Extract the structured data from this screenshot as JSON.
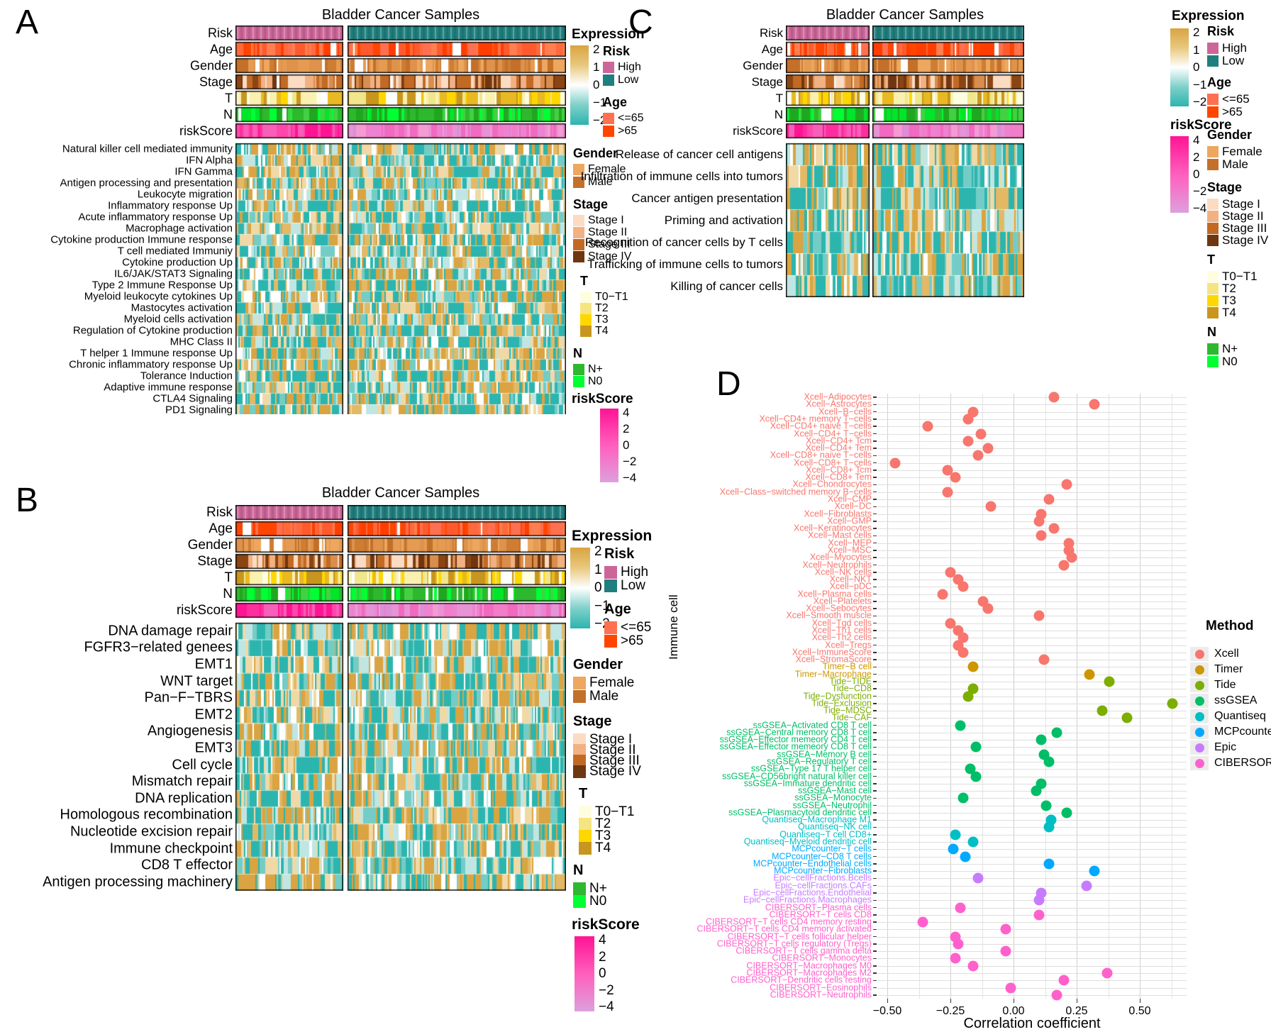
{
  "expression_legend": {
    "title": "Expression",
    "ticks": [
      "2",
      "1",
      "0",
      "−1",
      "−2"
    ],
    "gradient": [
      "#D9A441",
      "#E8C87E",
      "#FFFFFF",
      "#7FD0CA",
      "#2CB5AE"
    ]
  },
  "riskscore_legend": {
    "title": "riskScore",
    "ticks": [
      "4",
      "2",
      "0",
      "−2",
      "−4"
    ],
    "gradient": [
      "#FF1493",
      "#FF5FBE",
      "#DDA0DD"
    ]
  },
  "categorical_legends": {
    "risk": {
      "title": "Risk",
      "items": [
        {
          "label": "High",
          "color": "#CC6699"
        },
        {
          "label": "Low",
          "color": "#1F7F7E"
        }
      ]
    },
    "age": {
      "title": "Age",
      "items": [
        {
          "label": "<=65",
          "color": "#FF7050"
        },
        {
          "label": ">65",
          "color": "#FF4500"
        }
      ]
    },
    "gender": {
      "title": "Gender",
      "items": [
        {
          "label": "Female",
          "color": "#EDA75F"
        },
        {
          "label": "Male",
          "color": "#C3702A"
        }
      ]
    },
    "stage": {
      "title": "Stage",
      "items": [
        {
          "label": "Stage I",
          "color": "#FBDCC3"
        },
        {
          "label": "Stage II",
          "color": "#F2B183"
        },
        {
          "label": "Stage III",
          "color": "#C26A24"
        },
        {
          "label": "Stage IV",
          "color": "#6E3611"
        }
      ]
    },
    "t": {
      "title": "T",
      "items": [
        {
          "label": "T0−T1",
          "color": "#FFFDE0"
        },
        {
          "label": "T2",
          "color": "#F5E582"
        },
        {
          "label": "T3",
          "color": "#FFD700"
        },
        {
          "label": "T4",
          "color": "#C8961E"
        }
      ]
    },
    "n": {
      "title": "N",
      "items": [
        {
          "label": "N+",
          "color": "#2EB82E"
        },
        {
          "label": "N0",
          "color": "#00FF33"
        }
      ]
    }
  },
  "annotation_palettes": {
    "risk_high": [
      "#C05E8F",
      "#CC6699",
      "#D373A3",
      "#C76296"
    ],
    "risk_low": [
      "#13716F",
      "#1F7F7E",
      "#27908E",
      "#1A7A78"
    ],
    "age": [
      "#FF7050",
      "#FF4500",
      "#FF5A2E",
      "#FF7F50",
      "#FF3D00",
      "#FF6A3C"
    ],
    "gender": [
      "#EDA75F",
      "#C3702A",
      "#DE924B",
      "#CE7D33",
      "#E59B52"
    ],
    "stage": [
      "#FBDCC3",
      "#F2B183",
      "#D98E4E",
      "#C26A24",
      "#8B4513",
      "#6E3611"
    ],
    "t": [
      "#FFFDE0",
      "#FAF0B0",
      "#F0E68C",
      "#FFD700",
      "#E8B923",
      "#C8961E"
    ],
    "n": [
      "#2EB82E",
      "#00E629",
      "#00FF33",
      "#1FA81F",
      "#43D143"
    ],
    "riskscore_high": [
      "#FF1493",
      "#FF2E9F",
      "#FF47AB",
      "#F75FB8"
    ],
    "riskscore_low": [
      "#F06ABF",
      "#EE82D0",
      "#E893D6",
      "#F39BD2",
      "#DB8FD8",
      "#F27DC9"
    ],
    "expression_body": [
      "#2CB5AE",
      "#2CB5AE",
      "#2CB5AE",
      "#74CCC6",
      "#BFE6E3",
      "#FFFFFF",
      "#F0D9A6",
      "#E3B966",
      "#D9A441",
      "#D9A441"
    ]
  },
  "panel_a": {
    "label": "A",
    "title": "Bladder Cancer Samples",
    "annotation_rows": [
      "Risk",
      "Age",
      "Gender",
      "Stage",
      "T",
      "N",
      "riskScore"
    ],
    "rows": [
      "Natural killer cell mediated immunity",
      "IFN Alpha",
      "IFN Gamma",
      "Antigen processing and presentation",
      "Leukocyte migration",
      "Inflammatory response Up",
      "Acute inflammatory response Up",
      "Macrophage activation",
      "Cytokine production Immune response",
      "T cell mediated Immuniy",
      "Cytokine production Up",
      "IL6/JAK/STAT3 Signaling",
      "Type 2 Immune Response Up",
      "Myeloid leukocyte cytokines Up",
      "Mastocytes activation",
      "Myeloid cells activation",
      "Regulation of Cytokine production",
      "MHC Class II",
      "T helper 1 Immune response Up",
      "Chronic inflammatory response Up",
      "Tolerance Induction",
      "Adaptive immune response",
      "CTLA4 Signaling",
      "PD1 Signaling"
    ]
  },
  "panel_b": {
    "label": "B",
    "title": "Bladder Cancer Samples",
    "annotation_rows": [
      "Risk",
      "Age",
      "Gender",
      "Stage",
      "T",
      "N",
      "riskScore"
    ],
    "rows": [
      "DNA damage repair",
      "FGFR3−related genees",
      "EMT1",
      "WNT target",
      "Pan−F−TBRS",
      "EMT2",
      "Angiogenesis",
      "EMT3",
      "Cell cycle",
      "Mismatch repair",
      "DNA replication",
      "Homologous recombination",
      "Nucleotide excision repair",
      "Immune checkpoint",
      "CD8 T effector",
      "Antigen processing machinery"
    ]
  },
  "panel_c": {
    "label": "C",
    "title": "Bladder Cancer Samples",
    "annotation_rows": [
      "Risk",
      "Age",
      "Gender",
      "Stage",
      "T",
      "N",
      "riskScore"
    ],
    "rows": [
      "Release of cancer cell antigens",
      "Infiltration of immune cells into tumors",
      "Cancer antigen presentation",
      "Priming and activation",
      "Recognition of cancer cells by T cells",
      "Trafficking of immune cells to tumors",
      "Killing of cancer cells"
    ]
  },
  "panel_d": {
    "label": "D",
    "x_label": "Correlation coefficient",
    "y_label": "Immune cell",
    "x_ticks": [
      "−0.50",
      "−0.25",
      "0.00",
      "0.25",
      "0.50"
    ],
    "legend": {
      "title": "Method",
      "methods": [
        {
          "name": "Xcell",
          "color": "#F8766D"
        },
        {
          "name": "Timer",
          "color": "#CD9600"
        },
        {
          "name": "Tide",
          "color": "#7CAE00"
        },
        {
          "name": "ssGSEA",
          "color": "#00BE67"
        },
        {
          "name": "Quantiseq",
          "color": "#00BFC4"
        },
        {
          "name": "MCPcounter",
          "color": "#00A9FF"
        },
        {
          "name": "Epic",
          "color": "#C77CFF"
        },
        {
          "name": "CIBERSORT",
          "color": "#FF61CC"
        }
      ]
    }
  },
  "chart_data": {
    "type": "scatter",
    "xlabel": "Correlation coefficient",
    "ylabel": "Immune cell",
    "xlim": [
      -0.54,
      0.69
    ],
    "x_tick_values": [
      -0.5,
      -0.25,
      0,
      0.25,
      0.5
    ],
    "grid": "on",
    "legend_position": "right",
    "points": [
      {
        "label": "Xcell−Adipocytes",
        "method": "Xcell",
        "value": 0.16
      },
      {
        "label": "Xcell−Astrocytes",
        "method": "Xcell",
        "value": 0.32
      },
      {
        "label": "Xcell−B−cells",
        "method": "Xcell",
        "value": -0.16
      },
      {
        "label": "Xcell−CD4+ memory T−cells",
        "method": "Xcell",
        "value": -0.18
      },
      {
        "label": "Xcell−CD4+ naive T−cells",
        "method": "Xcell",
        "value": -0.34
      },
      {
        "label": "Xcell−CD4+ T−cells",
        "method": "Xcell",
        "value": -0.13
      },
      {
        "label": "Xcell−CD4+ Tcm",
        "method": "Xcell",
        "value": -0.18
      },
      {
        "label": "Xcell−CD4+ Tem",
        "method": "Xcell",
        "value": -0.1
      },
      {
        "label": "Xcell−CD8+ naive T−cells",
        "method": "Xcell",
        "value": -0.14
      },
      {
        "label": "Xcell−CD8+ T−cells",
        "method": "Xcell",
        "value": -0.47
      },
      {
        "label": "Xcell−CD8+ Tcm",
        "method": "Xcell",
        "value": -0.26
      },
      {
        "label": "Xcell−CD8+ Tem",
        "method": "Xcell",
        "value": -0.23
      },
      {
        "label": "Xcell−Chondrocytes",
        "method": "Xcell",
        "value": 0.21
      },
      {
        "label": "Xcell−Class−switched memory B−cells",
        "method": "Xcell",
        "value": -0.26
      },
      {
        "label": "Xcell−CMP",
        "method": "Xcell",
        "value": 0.14
      },
      {
        "label": "Xcell−DC",
        "method": "Xcell",
        "value": -0.09
      },
      {
        "label": "Xcell−Fibroblasts",
        "method": "Xcell",
        "value": 0.11
      },
      {
        "label": "Xcell−GMP",
        "method": "Xcell",
        "value": 0.1
      },
      {
        "label": "Xcell−Keratinocytes",
        "method": "Xcell",
        "value": 0.16
      },
      {
        "label": "Xcell−Mast cells",
        "method": "Xcell",
        "value": 0.11
      },
      {
        "label": "Xcell−MEP",
        "method": "Xcell",
        "value": 0.22
      },
      {
        "label": "Xcell−MSC",
        "method": "Xcell",
        "value": 0.22
      },
      {
        "label": "Xcell−Myocytes",
        "method": "Xcell",
        "value": 0.23
      },
      {
        "label": "Xcell−Neutrophils",
        "method": "Xcell",
        "value": 0.2
      },
      {
        "label": "Xcell−NK cells",
        "method": "Xcell",
        "value": -0.25
      },
      {
        "label": "Xcell−NKT",
        "method": "Xcell",
        "value": -0.22
      },
      {
        "label": "Xcell−pDC",
        "method": "Xcell",
        "value": -0.2
      },
      {
        "label": "Xcell−Plasma cells",
        "method": "Xcell",
        "value": -0.28
      },
      {
        "label": "Xcell−Platelets",
        "method": "Xcell",
        "value": -0.12
      },
      {
        "label": "Xcell−Sebocytes",
        "method": "Xcell",
        "value": -0.1
      },
      {
        "label": "Xcell−Smooth muscle",
        "method": "Xcell",
        "value": 0.1
      },
      {
        "label": "Xcell−Tgd cells",
        "method": "Xcell",
        "value": -0.25
      },
      {
        "label": "Xcell−Th1 cells",
        "method": "Xcell",
        "value": -0.22
      },
      {
        "label": "Xcell−Th2 cells",
        "method": "Xcell",
        "value": -0.2
      },
      {
        "label": "Xcell−Tregs",
        "method": "Xcell",
        "value": -0.22
      },
      {
        "label": "Xcell−ImmuneScore",
        "method": "Xcell",
        "value": -0.2
      },
      {
        "label": "Xcell−StromaScore",
        "method": "Xcell",
        "value": 0.12
      },
      {
        "label": "Timer−B cell",
        "method": "Timer",
        "value": -0.16
      },
      {
        "label": "Timer−Macrophage",
        "method": "Timer",
        "value": 0.3
      },
      {
        "label": "Tide−TIDE",
        "method": "Tide",
        "value": 0.38
      },
      {
        "label": "Tide−CD8",
        "method": "Tide",
        "value": -0.16
      },
      {
        "label": "Tide−Dysfunction",
        "method": "Tide",
        "value": -0.18
      },
      {
        "label": "Tide−Exclusion",
        "method": "Tide",
        "value": 0.63
      },
      {
        "label": "Tide−MDSC",
        "method": "Tide",
        "value": 0.35
      },
      {
        "label": "Tide−CAF",
        "method": "Tide",
        "value": 0.45
      },
      {
        "label": "ssGSEA−Activated CD8 T cell",
        "method": "ssGSEA",
        "value": -0.21
      },
      {
        "label": "ssGSEA−Central memory CD8 T cell",
        "method": "ssGSEA",
        "value": 0.17
      },
      {
        "label": "ssGSEA−Effector memeory CD4 T cell",
        "method": "ssGSEA",
        "value": 0.11
      },
      {
        "label": "ssGSEA−Effector memeory CD8 T cell",
        "method": "ssGSEA",
        "value": -0.15
      },
      {
        "label": "ssGSEA−Memory B cell",
        "method": "ssGSEA",
        "value": 0.12
      },
      {
        "label": "ssGSEA−Regulatory T cell",
        "method": "ssGSEA",
        "value": 0.14
      },
      {
        "label": "ssGSEA−Type 17 T helper cell",
        "method": "ssGSEA",
        "value": -0.17
      },
      {
        "label": "ssGSEA−CD56bright natural killer cell",
        "method": "ssGSEA",
        "value": -0.15
      },
      {
        "label": "ssGSEA−Immature dendritic cell",
        "method": "ssGSEA",
        "value": 0.11
      },
      {
        "label": "ssGSEA−Mast cell",
        "method": "ssGSEA",
        "value": 0.09
      },
      {
        "label": "ssGSEA−Monocyte",
        "method": "ssGSEA",
        "value": -0.2
      },
      {
        "label": "ssGSEA−Neutrophil",
        "method": "ssGSEA",
        "value": 0.13
      },
      {
        "label": "ssGSEA−Plasmacytoid dendritic cell",
        "method": "ssGSEA",
        "value": 0.21
      },
      {
        "label": "Quantiseq−Macrophage M1",
        "method": "Quantiseq",
        "value": 0.15
      },
      {
        "label": "Quantiseq−NK cell",
        "method": "Quantiseq",
        "value": 0.14
      },
      {
        "label": "Quantiseq−T cell CD8+",
        "method": "Quantiseq",
        "value": -0.23
      },
      {
        "label": "Quantiseq−Myeloid dendritic cell",
        "method": "Quantiseq",
        "value": -0.16
      },
      {
        "label": "MCPcounter−T cells",
        "method": "MCPcounter",
        "value": -0.24
      },
      {
        "label": "MCPcounter−CD8 T cells",
        "method": "MCPcounter",
        "value": -0.19
      },
      {
        "label": "MCPcounter−Endothelial cells",
        "method": "MCPcounter",
        "value": 0.14
      },
      {
        "label": "MCPcounter−Fibroblasts",
        "method": "MCPcounter",
        "value": 0.32
      },
      {
        "label": "Epic−cellFractions.Bcells",
        "method": "Epic",
        "value": -0.14
      },
      {
        "label": "Epic−cellFractions.CAFs",
        "method": "Epic",
        "value": 0.29
      },
      {
        "label": "Epic−cellFractions.Endothelial",
        "method": "Epic",
        "value": 0.11
      },
      {
        "label": "Epic−cellFractions.Macrophages",
        "method": "Epic",
        "value": 0.1
      },
      {
        "label": "CIBERSORT−Plasma cells",
        "method": "CIBERSORT",
        "value": -0.21
      },
      {
        "label": "CIBERSORT−T cells CD8",
        "method": "CIBERSORT",
        "value": 0.1
      },
      {
        "label": "CIBERSORT−T cells CD4 memory resting",
        "method": "CIBERSORT",
        "value": -0.36
      },
      {
        "label": "CIBERSORT−T cells CD4 memory activated",
        "method": "CIBERSORT",
        "value": -0.03
      },
      {
        "label": "CIBERSORT−T cells follicular helper",
        "method": "CIBERSORT",
        "value": -0.23
      },
      {
        "label": "CIBERSORT−T cells regulatory (Tregs)",
        "method": "CIBERSORT",
        "value": -0.22
      },
      {
        "label": "CIBERSORT−T cells gamma delta",
        "method": "CIBERSORT",
        "value": -0.03
      },
      {
        "label": "CIBERSORT−Monocytes",
        "method": "CIBERSORT",
        "value": -0.23
      },
      {
        "label": "CIBERSORT−Macrophages M0",
        "method": "CIBERSORT",
        "value": -0.16
      },
      {
        "label": "CIBERSORT−Macrophages M2",
        "method": "CIBERSORT",
        "value": 0.37
      },
      {
        "label": "CIBERSORT−Dendritic cells resting",
        "method": "CIBERSORT",
        "value": 0.2
      },
      {
        "label": "CIBERSORT−Eosinophils",
        "method": "CIBERSORT",
        "value": -0.01
      },
      {
        "label": "CIBERSORT−Neutrophils",
        "method": "CIBERSORT",
        "value": 0.17
      }
    ]
  }
}
